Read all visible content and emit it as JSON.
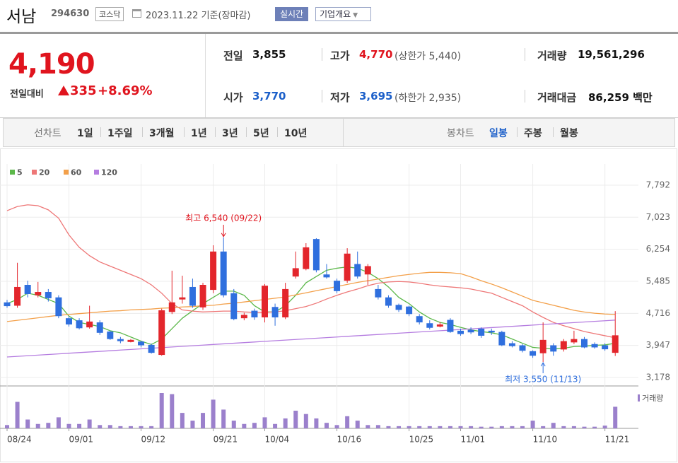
{
  "header": {
    "name": "서남",
    "code": "294630",
    "market": "코스닥",
    "date": "2023.11.22 기준(장마감)",
    "realtime": "실시간",
    "company": "기업개요"
  },
  "quote": {
    "price": "4,190",
    "change_label": "전일대비",
    "change": "335",
    "change_pct": "+8.69%",
    "items": [
      {
        "label": "전일",
        "value": "3,855"
      },
      {
        "label": "고가",
        "value": "4,770",
        "note": "(상한가 5,440)"
      },
      {
        "label": "거래량",
        "value": "19,561,296"
      },
      {
        "label": "시가",
        "value": "3,770"
      },
      {
        "label": "저가",
        "value": "3,695",
        "note": "(하한가 2,935)"
      },
      {
        "label": "거래대금",
        "value": "86,259 백만"
      }
    ]
  },
  "tabs": {
    "line_label": "선차트",
    "line": [
      "1일",
      "1주일",
      "3개월",
      "1년",
      "3년",
      "5년",
      "10년"
    ],
    "candle_label": "봉차트",
    "candle": [
      "일봉",
      "주봉",
      "월봉"
    ]
  },
  "chart_data": {
    "type": "candlestick",
    "categories": [
      "08/24",
      null,
      null,
      null,
      null,
      null,
      "09/01",
      null,
      null,
      null,
      null,
      null,
      null,
      "09/12",
      null,
      null,
      null,
      null,
      null,
      null,
      "09/21",
      null,
      null,
      null,
      null,
      "10/04",
      null,
      null,
      null,
      null,
      null,
      null,
      "10/16",
      null,
      null,
      null,
      null,
      null,
      null,
      "10/25",
      null,
      null,
      null,
      null,
      "11/01",
      null,
      null,
      null,
      null,
      null,
      null,
      "11/10",
      null,
      null,
      null,
      null,
      null,
      null,
      "11/21",
      null
    ],
    "open": [
      4980,
      4900,
      5400,
      5150,
      5230,
      5100,
      4600,
      4550,
      4380,
      4500,
      4280,
      4100,
      4030,
      4040,
      3960,
      3720,
      4750,
      5050,
      5350,
      4860,
      5280,
      6200,
      5200,
      4600,
      4780,
      4620,
      4870,
      4620,
      5600,
      5780,
      6500,
      5650,
      5500,
      5500,
      5900,
      5650,
      5300,
      5100,
      4920,
      4880,
      4650,
      4480,
      4400,
      4560,
      4300,
      4320,
      4350,
      4300,
      4270,
      4000,
      3950,
      3810,
      3760,
      3950,
      3850,
      4020,
      4100,
      3980,
      3950,
      3770
    ],
    "high": [
      5040,
      5930,
      5500,
      5470,
      5300,
      5150,
      4650,
      4600,
      4900,
      4550,
      4300,
      4150,
      4100,
      4060,
      3990,
      4830,
      5740,
      5620,
      5550,
      5450,
      6350,
      6540,
      5300,
      4730,
      4830,
      5420,
      4950,
      5450,
      6200,
      6400,
      6520,
      5900,
      5550,
      6280,
      6200,
      5900,
      5400,
      5150,
      4950,
      4900,
      4700,
      4550,
      4500,
      4600,
      4350,
      4380,
      4380,
      4350,
      4300,
      4050,
      3980,
      3830,
      4500,
      4000,
      4100,
      4300,
      4150,
      4020,
      4000,
      4770
    ],
    "low": [
      4850,
      4850,
      5100,
      5100,
      5000,
      4600,
      4400,
      4330,
      4350,
      4200,
      4080,
      4000,
      4020,
      3900,
      3750,
      3700,
      4700,
      4950,
      4850,
      4800,
      5200,
      5100,
      4550,
      4550,
      4560,
      4500,
      4420,
      4580,
      5550,
      5750,
      5700,
      5550,
      5200,
      5450,
      5550,
      5400,
      5050,
      4850,
      4750,
      4650,
      4450,
      4330,
      4380,
      4250,
      4180,
      4220,
      4130,
      4200,
      3930,
      3900,
      3780,
      3650,
      3550,
      3700,
      3800,
      3980,
      3880,
      3870,
      3820,
      3695
    ],
    "close": [
      4890,
      5350,
      5180,
      5230,
      5080,
      4650,
      4450,
      4360,
      4520,
      4250,
      4100,
      4050,
      4080,
      3950,
      3770,
      4790,
      4980,
      5100,
      4900,
      5400,
      6200,
      5150,
      4580,
      4680,
      4620,
      5380,
      4620,
      5300,
      5800,
      6300,
      5750,
      5580,
      5250,
      6150,
      5600,
      5850,
      5100,
      4900,
      4800,
      4700,
      4500,
      4370,
      4450,
      4270,
      4220,
      4260,
      4180,
      4260,
      3950,
      3930,
      3820,
      3700,
      4080,
      3800,
      4050,
      4100,
      3900,
      3900,
      3855,
      4190
    ],
    "up_color": "#e3262c",
    "down_color": "#2f6fde",
    "series": [
      {
        "name": "5",
        "color": "#5cb84a",
        "values": [
          4950,
          5050,
          5200,
          5150,
          5050,
          4950,
          4650,
          4500,
          4450,
          4400,
          4300,
          4250,
          4150,
          4050,
          3970,
          4100,
          4350,
          4600,
          4780,
          4950,
          5100,
          5250,
          5250,
          5150,
          4900,
          4750,
          4750,
          4900,
          5150,
          5450,
          5600,
          5750,
          5800,
          5830,
          5800,
          5700,
          5550,
          5350,
          5100,
          4950,
          4750,
          4600,
          4500,
          4450,
          4380,
          4320,
          4280,
          4250,
          4200,
          4100,
          4000,
          3900,
          3880,
          3860,
          3880,
          3920,
          3930,
          3950,
          3960,
          4000
        ]
      },
      {
        "name": "20",
        "color": "#ee7777",
        "values": [
          7180,
          7280,
          7320,
          7300,
          7200,
          7000,
          6600,
          6300,
          6100,
          5950,
          5850,
          5750,
          5650,
          5550,
          5400,
          5200,
          4950,
          4800,
          4770,
          4750,
          4760,
          4770,
          4770,
          4750,
          4740,
          4740,
          4750,
          4780,
          4830,
          4880,
          4960,
          5060,
          5150,
          5230,
          5300,
          5380,
          5440,
          5470,
          5480,
          5470,
          5440,
          5400,
          5370,
          5350,
          5330,
          5300,
          5250,
          5200,
          5100,
          5000,
          4900,
          4750,
          4620,
          4500,
          4420,
          4350,
          4280,
          4230,
          4180,
          4130
        ]
      },
      {
        "name": "60",
        "color": "#f3a04a",
        "values": [
          4520,
          4550,
          4580,
          4610,
          4640,
          4670,
          4690,
          4710,
          4730,
          4750,
          4770,
          4780,
          4800,
          4810,
          4820,
          4840,
          4850,
          4870,
          4880,
          4900,
          4910,
          4940,
          4960,
          4990,
          5020,
          5050,
          5080,
          5110,
          5160,
          5210,
          5260,
          5310,
          5360,
          5410,
          5460,
          5500,
          5540,
          5580,
          5620,
          5650,
          5680,
          5700,
          5700,
          5690,
          5670,
          5590,
          5500,
          5420,
          5330,
          5230,
          5130,
          5030,
          4970,
          4910,
          4850,
          4790,
          4750,
          4720,
          4700,
          4690
        ]
      },
      {
        "name": "120",
        "color": "#b57de0",
        "values": [
          3670,
          3685,
          3700,
          3715,
          3730,
          3745,
          3760,
          3775,
          3790,
          3805,
          3820,
          3835,
          3850,
          3865,
          3880,
          3895,
          3910,
          3925,
          3940,
          3955,
          3970,
          3985,
          4000,
          4015,
          4030,
          4045,
          4060,
          4075,
          4090,
          4105,
          4120,
          4135,
          4150,
          4165,
          4180,
          4195,
          4210,
          4225,
          4240,
          4255,
          4270,
          4285,
          4300,
          4315,
          4330,
          4345,
          4360,
          4375,
          4390,
          4405,
          4420,
          4435,
          4450,
          4465,
          4480,
          4495,
          4510,
          4525,
          4540,
          4555
        ]
      }
    ],
    "volume": {
      "name": "거래량",
      "color": "#9b80cc",
      "values": [
        3000000,
        24000000,
        8000000,
        4000000,
        5000000,
        10000000,
        4000000,
        4000000,
        8000000,
        3000000,
        3000000,
        2000000,
        2000000,
        2000000,
        2000000,
        32000000,
        31000000,
        14000000,
        7000000,
        14000000,
        26000000,
        17000000,
        7000000,
        4000000,
        5000000,
        10000000,
        4000000,
        9000000,
        16000000,
        13000000,
        9000000,
        5000000,
        3000000,
        11000000,
        7000000,
        3000000,
        3000000,
        2000000,
        2000000,
        2000000,
        2000000,
        2000000,
        2000000,
        2000000,
        2000000,
        2000000,
        1500000,
        1500000,
        2000000,
        2000000,
        2000000,
        7000000,
        2000000,
        5000000,
        2000000,
        2000000,
        1500000,
        1500000,
        2500000,
        19561296
      ]
    },
    "ylim": [
      2975,
      8300
    ],
    "yticks": [
      {
        "value": 7792,
        "label": "7,792"
      },
      {
        "value": 7023,
        "label": "7,023"
      },
      {
        "value": 6254,
        "label": "6,254"
      },
      {
        "value": 5485,
        "label": "5,485"
      },
      {
        "value": 4716,
        "label": "4,716"
      },
      {
        "value": 3947,
        "label": "3,947"
      },
      {
        "value": 3178,
        "label": "3,178"
      }
    ],
    "grid": true,
    "annotations": {
      "high": "최고 6,540 (09/22)",
      "low": "최저 3,550 (11/13)"
    }
  }
}
